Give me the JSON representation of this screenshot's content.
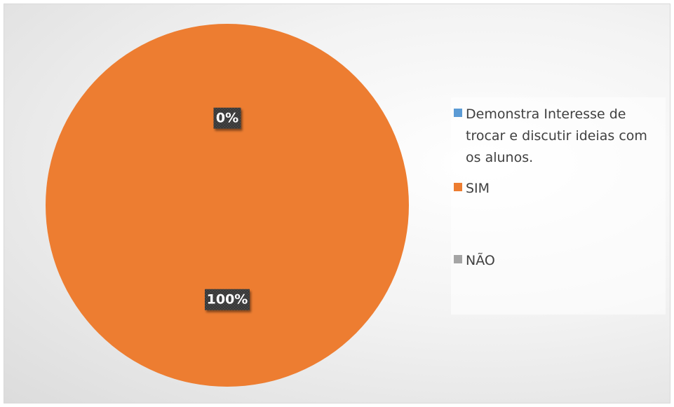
{
  "chart_data": {
    "type": "pie",
    "categories": [
      "Demonstra Interesse de trocar e discutir ideias com os alunos.",
      "SIM",
      "NÃO"
    ],
    "values": [
      0,
      100,
      0
    ],
    "data_labels": [
      "0%",
      "100%",
      ""
    ],
    "colors": [
      "#5b9bd5",
      "#ed7d31",
      "#a5a5a5"
    ],
    "legend": "right"
  }
}
